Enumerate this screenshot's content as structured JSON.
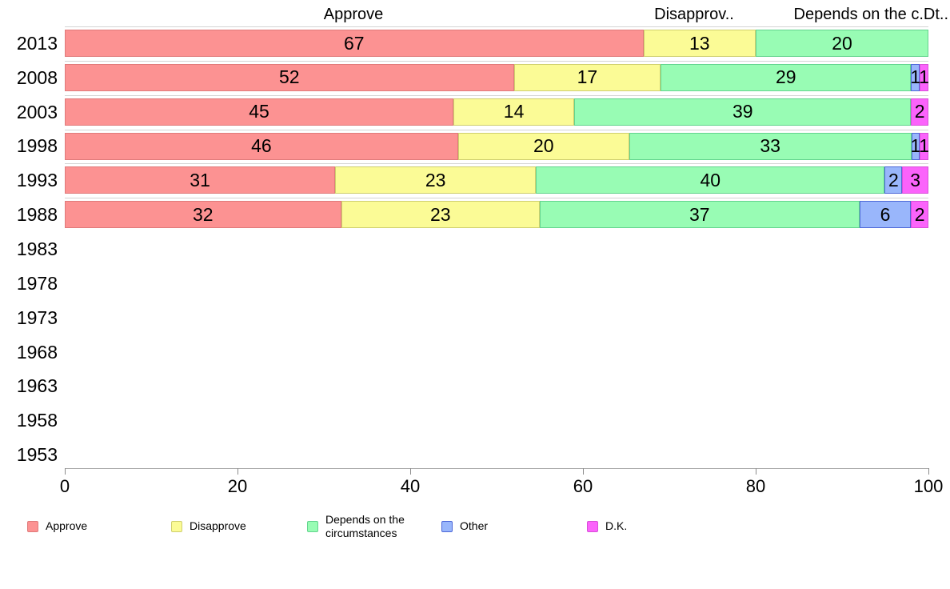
{
  "chart_data": {
    "type": "bar",
    "orientation": "horizontal",
    "stacked": true,
    "title": "",
    "xlabel": "",
    "ylabel": "",
    "xlim": [
      0,
      100
    ],
    "xticks": [
      0,
      20,
      40,
      60,
      80,
      100
    ],
    "grid": false,
    "legend_position": "bottom",
    "column_headers": [
      "Approve",
      "Disapprov..",
      "Depends on the c.Dt.."
    ],
    "categories": [
      "2013",
      "2008",
      "2003",
      "1998",
      "1993",
      "1988",
      "1983",
      "1978",
      "1973",
      "1968",
      "1963",
      "1958",
      "1953"
    ],
    "series": [
      {
        "name": "Approve",
        "color": "#fc9292",
        "border_color": "#e07a7a",
        "values": [
          67,
          52,
          45,
          46,
          31,
          32,
          null,
          null,
          null,
          null,
          null,
          null,
          null
        ]
      },
      {
        "name": "Disapprove",
        "color": "#fbfb96",
        "border_color": "#cfcf6e",
        "values": [
          13,
          17,
          14,
          20,
          23,
          23,
          null,
          null,
          null,
          null,
          null,
          null,
          null
        ]
      },
      {
        "name": "Depends on the circumstances",
        "color": "#98fcb4",
        "border_color": "#63d48e",
        "values": [
          20,
          29,
          39,
          33,
          40,
          37,
          null,
          null,
          null,
          null,
          null,
          null,
          null
        ]
      },
      {
        "name": "Other",
        "color": "#99b6fb",
        "border_color": "#4d68d8",
        "values": [
          0,
          1,
          0,
          1,
          2,
          6,
          null,
          null,
          null,
          null,
          null,
          null,
          null
        ]
      },
      {
        "name": "D.K.",
        "color": "#fb63fb",
        "border_color": "#d94ed9",
        "values": [
          0,
          1,
          2,
          1,
          3,
          2,
          null,
          null,
          null,
          null,
          null,
          null,
          null
        ]
      }
    ]
  }
}
